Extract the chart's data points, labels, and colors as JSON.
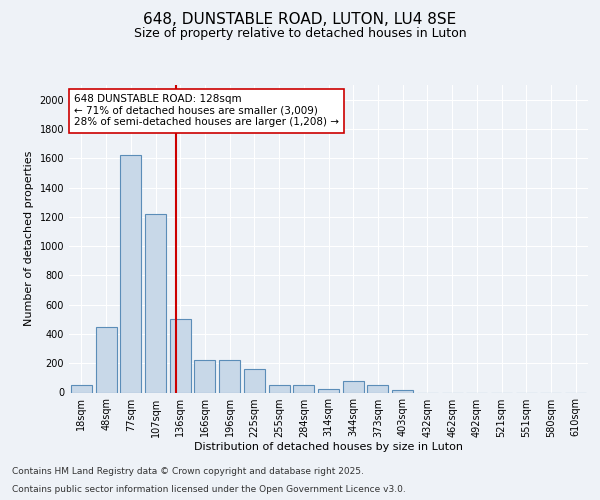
{
  "title1": "648, DUNSTABLE ROAD, LUTON, LU4 8SE",
  "title2": "Size of property relative to detached houses in Luton",
  "xlabel": "Distribution of detached houses by size in Luton",
  "ylabel": "Number of detached properties",
  "categories": [
    "18sqm",
    "48sqm",
    "77sqm",
    "107sqm",
    "136sqm",
    "166sqm",
    "196sqm",
    "225sqm",
    "255sqm",
    "284sqm",
    "314sqm",
    "344sqm",
    "373sqm",
    "403sqm",
    "432sqm",
    "462sqm",
    "492sqm",
    "521sqm",
    "551sqm",
    "580sqm",
    "610sqm"
  ],
  "values": [
    50,
    450,
    1620,
    1220,
    500,
    220,
    220,
    160,
    50,
    50,
    25,
    80,
    50,
    15,
    0,
    0,
    0,
    0,
    0,
    0,
    0
  ],
  "bar_color": "#c8d8e8",
  "bar_edge_color": "#5b8db8",
  "bar_linewidth": 0.8,
  "vline_x": 3.82,
  "vline_color": "#cc0000",
  "annotation_text": "648 DUNSTABLE ROAD: 128sqm\n← 71% of detached houses are smaller (3,009)\n28% of semi-detached houses are larger (1,208) →",
  "annotation_box_color": "#ffffff",
  "annotation_box_edge": "#cc0000",
  "ylim": [
    0,
    2100
  ],
  "yticks": [
    0,
    200,
    400,
    600,
    800,
    1000,
    1200,
    1400,
    1600,
    1800,
    2000
  ],
  "bg_color": "#eef2f7",
  "plot_bg_color": "#eef2f7",
  "footer1": "Contains HM Land Registry data © Crown copyright and database right 2025.",
  "footer2": "Contains public sector information licensed under the Open Government Licence v3.0.",
  "title_fontsize": 11,
  "subtitle_fontsize": 9,
  "axis_fontsize": 8,
  "tick_fontsize": 7,
  "annotation_fontsize": 7.5,
  "footer_fontsize": 6.5
}
